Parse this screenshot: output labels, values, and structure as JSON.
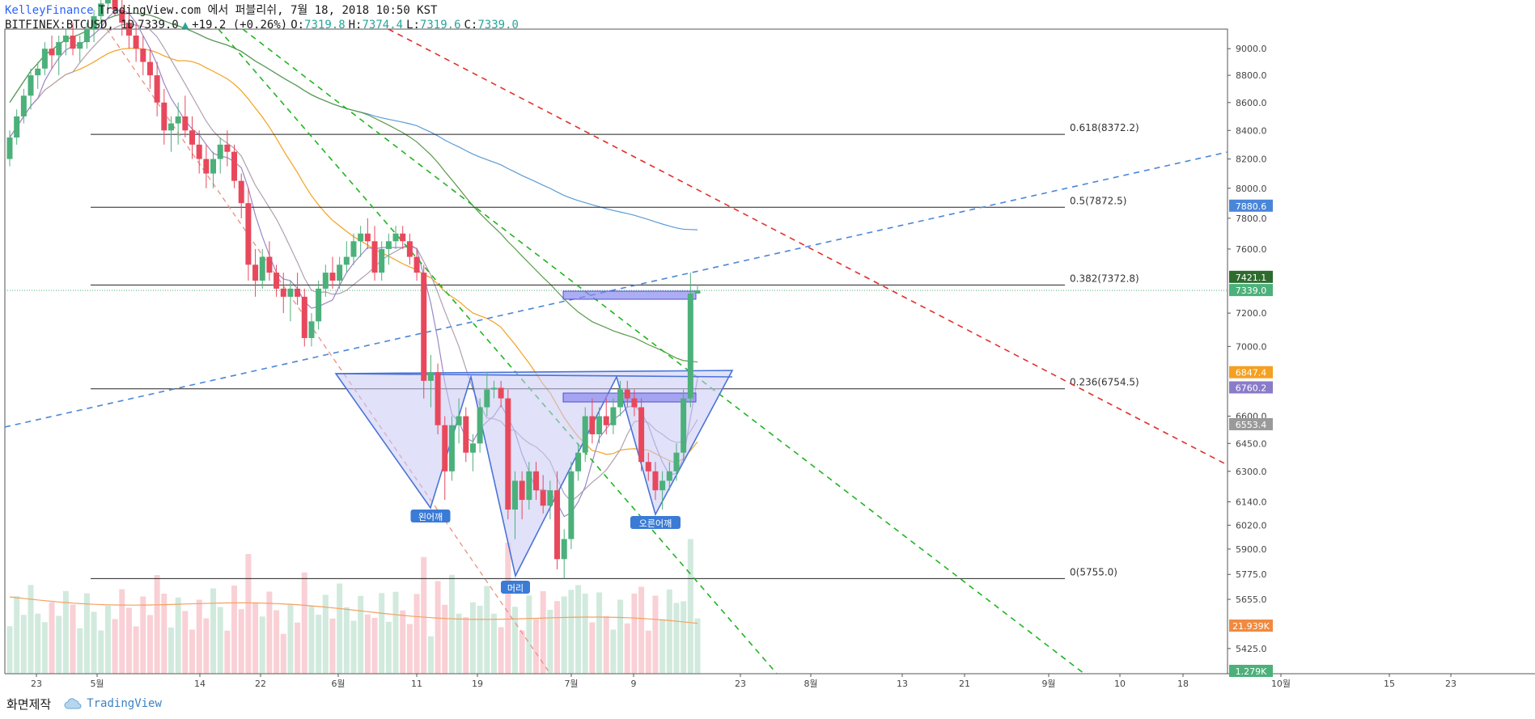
{
  "header": {
    "publisher": "KelleyFinance",
    "source_text": "TradingView.com 에서 퍼블리쉬, 7월 18, 2018 10:50 KST",
    "symbol": "BITFINEX:BTCUSD, 1D",
    "last": "7339.0",
    "arrow": "▲",
    "change": "+19.2 (+0.26%)",
    "open_label": "O:",
    "open": "7319.8",
    "high_label": "H:",
    "high": "7374.4",
    "low_label": "L:",
    "low": "7319.6",
    "close_label": "C:",
    "close": "7339.0"
  },
  "footer": {
    "made_with": "화면제작",
    "brand": "TradingView"
  },
  "colors": {
    "up": "#4cb07a",
    "down": "#e8485c",
    "ma_blue": "#5b9bd5",
    "ma_green": "#5a9a4a",
    "ma_orange": "#f4a020",
    "ma_purple": "#9a88c8",
    "ma_gray": "#b0a0b0",
    "trend_green": "#22b422",
    "trend_red": "#e0302a",
    "trend_blue": "#4a86d8",
    "pattern_fill": "#c8c8f4",
    "pattern_line": "#4a74d8"
  },
  "chart_data": {
    "type": "candlestick",
    "y_axis": {
      "ticks": [
        "9000.0",
        "8800.0",
        "8600.0",
        "8400.0",
        "8200.0",
        "8000.0",
        "7800.0",
        "7600.0",
        "7200.0",
        "7000.0",
        "6600.0",
        "6450.0",
        "6300.0",
        "6140.0",
        "6020.0",
        "5900.0",
        "5775.0",
        "5655.0",
        "5425.0"
      ],
      "range": [
        5300,
        9100
      ],
      "scale": "log"
    },
    "x_axis": {
      "ticks": [
        "23",
        "5월",
        "14",
        "22",
        "6월",
        "11",
        "19",
        "7월",
        "9",
        "23",
        "8월",
        "13",
        "21",
        "9월",
        "10",
        "18",
        "10월",
        "15",
        "23"
      ]
    },
    "price_labels": [
      {
        "text": "7880.6",
        "value": 7880.6,
        "color": "#4a86d8"
      },
      {
        "text": "7421.1",
        "value": 7421.1,
        "color": "#2e6b2e"
      },
      {
        "text": "7339.0",
        "value": 7339.0,
        "color": "#4cb07a"
      },
      {
        "text": "6847.4",
        "value": 6847.4,
        "color": "#f4a020"
      },
      {
        "text": "6760.2",
        "value": 6760.2,
        "color": "#8a7cc8"
      },
      {
        "text": "6553.4",
        "value": 6553.4,
        "color": "#9a9a9a"
      },
      {
        "text": "21.939K",
        "value": null,
        "color": "#f08a40"
      },
      {
        "text": "1.279K",
        "value": null,
        "color": "#4cb07a"
      }
    ],
    "fibonacci": [
      {
        "label": "0.618(8372.2)",
        "value": 8372.2
      },
      {
        "label": "0.5(7872.5)",
        "value": 7872.5
      },
      {
        "label": "0.382(7372.8)",
        "value": 7372.8
      },
      {
        "label": "0.236(6754.5)",
        "value": 6754.5
      },
      {
        "label": "0(5755.0)",
        "value": 5755.0
      }
    ],
    "pattern_labels": [
      {
        "text": "왼어깨",
        "value": 6110
      },
      {
        "text": "머리",
        "value": 5755
      },
      {
        "text": "오른어깨",
        "value": 6080
      }
    ],
    "candles": [
      {
        "o": 8200,
        "h": 8400,
        "l": 8150,
        "c": 8350
      },
      {
        "o": 8350,
        "h": 8550,
        "l": 8300,
        "c": 8500
      },
      {
        "o": 8500,
        "h": 8700,
        "l": 8450,
        "c": 8650
      },
      {
        "o": 8650,
        "h": 8850,
        "l": 8550,
        "c": 8800
      },
      {
        "o": 8800,
        "h": 8900,
        "l": 8700,
        "c": 8850
      },
      {
        "o": 8850,
        "h": 9050,
        "l": 8800,
        "c": 9000
      },
      {
        "o": 9000,
        "h": 9100,
        "l": 8850,
        "c": 8950
      },
      {
        "o": 8950,
        "h": 9100,
        "l": 8800,
        "c": 9050
      },
      {
        "o": 9050,
        "h": 9150,
        "l": 8950,
        "c": 9100
      },
      {
        "o": 9100,
        "h": 9200,
        "l": 8950,
        "c": 9000
      },
      {
        "o": 9000,
        "h": 9100,
        "l": 8900,
        "c": 9050
      },
      {
        "o": 9050,
        "h": 9200,
        "l": 9000,
        "c": 9150
      },
      {
        "o": 9150,
        "h": 9300,
        "l": 9050,
        "c": 9250
      },
      {
        "o": 9250,
        "h": 9400,
        "l": 9200,
        "c": 9350
      },
      {
        "o": 9350,
        "h": 9450,
        "l": 9300,
        "c": 9400
      },
      {
        "o": 9400,
        "h": 9500,
        "l": 9250,
        "c": 9300
      },
      {
        "o": 9300,
        "h": 9400,
        "l": 9100,
        "c": 9200
      },
      {
        "o": 9200,
        "h": 9300,
        "l": 9000,
        "c": 9100
      },
      {
        "o": 9100,
        "h": 9200,
        "l": 8900,
        "c": 9000
      },
      {
        "o": 9000,
        "h": 9100,
        "l": 8800,
        "c": 8900
      },
      {
        "o": 8900,
        "h": 9000,
        "l": 8700,
        "c": 8800
      },
      {
        "o": 8800,
        "h": 8900,
        "l": 8500,
        "c": 8600
      },
      {
        "o": 8600,
        "h": 8700,
        "l": 8300,
        "c": 8400
      },
      {
        "o": 8400,
        "h": 8500,
        "l": 8250,
        "c": 8450
      },
      {
        "o": 8450,
        "h": 8600,
        "l": 8300,
        "c": 8500
      },
      {
        "o": 8500,
        "h": 8650,
        "l": 8350,
        "c": 8400
      },
      {
        "o": 8400,
        "h": 8500,
        "l": 8200,
        "c": 8300
      },
      {
        "o": 8300,
        "h": 8400,
        "l": 8100,
        "c": 8200
      },
      {
        "o": 8200,
        "h": 8300,
        "l": 8000,
        "c": 8100
      },
      {
        "o": 8100,
        "h": 8250,
        "l": 8000,
        "c": 8200
      },
      {
        "o": 8200,
        "h": 8350,
        "l": 8100,
        "c": 8300
      },
      {
        "o": 8300,
        "h": 8400,
        "l": 8150,
        "c": 8250
      },
      {
        "o": 8250,
        "h": 8300,
        "l": 8000,
        "c": 8050
      },
      {
        "o": 8050,
        "h": 8100,
        "l": 7800,
        "c": 7900
      },
      {
        "o": 7900,
        "h": 8000,
        "l": 7400,
        "c": 7500
      },
      {
        "o": 7500,
        "h": 7600,
        "l": 7300,
        "c": 7400
      },
      {
        "o": 7400,
        "h": 7600,
        "l": 7350,
        "c": 7550
      },
      {
        "o": 7550,
        "h": 7650,
        "l": 7400,
        "c": 7450
      },
      {
        "o": 7450,
        "h": 7500,
        "l": 7300,
        "c": 7350
      },
      {
        "o": 7350,
        "h": 7450,
        "l": 7200,
        "c": 7300
      },
      {
        "o": 7300,
        "h": 7400,
        "l": 7150,
        "c": 7350
      },
      {
        "o": 7350,
        "h": 7450,
        "l": 7250,
        "c": 7300
      },
      {
        "o": 7300,
        "h": 7350,
        "l": 7000,
        "c": 7050
      },
      {
        "o": 7050,
        "h": 7200,
        "l": 7000,
        "c": 7150
      },
      {
        "o": 7150,
        "h": 7400,
        "l": 7100,
        "c": 7350
      },
      {
        "o": 7350,
        "h": 7500,
        "l": 7300,
        "c": 7450
      },
      {
        "o": 7450,
        "h": 7550,
        "l": 7350,
        "c": 7400
      },
      {
        "o": 7400,
        "h": 7550,
        "l": 7350,
        "c": 7500
      },
      {
        "o": 7500,
        "h": 7650,
        "l": 7450,
        "c": 7550
      },
      {
        "o": 7550,
        "h": 7700,
        "l": 7500,
        "c": 7650
      },
      {
        "o": 7650,
        "h": 7750,
        "l": 7550,
        "c": 7700
      },
      {
        "o": 7700,
        "h": 7800,
        "l": 7600,
        "c": 7650
      },
      {
        "o": 7650,
        "h": 7750,
        "l": 7400,
        "c": 7450
      },
      {
        "o": 7450,
        "h": 7650,
        "l": 7400,
        "c": 7600
      },
      {
        "o": 7600,
        "h": 7700,
        "l": 7500,
        "c": 7650
      },
      {
        "o": 7650,
        "h": 7750,
        "l": 7600,
        "c": 7700
      },
      {
        "o": 7700,
        "h": 7750,
        "l": 7600,
        "c": 7650
      },
      {
        "o": 7650,
        "h": 7700,
        "l": 7500,
        "c": 7550
      },
      {
        "o": 7550,
        "h": 7600,
        "l": 7400,
        "c": 7450
      },
      {
        "o": 7450,
        "h": 7500,
        "l": 6700,
        "c": 6800
      },
      {
        "o": 6800,
        "h": 6950,
        "l": 6650,
        "c": 6850
      },
      {
        "o": 6850,
        "h": 6900,
        "l": 6500,
        "c": 6550
      },
      {
        "o": 6550,
        "h": 6600,
        "l": 6150,
        "c": 6300
      },
      {
        "o": 6300,
        "h": 6600,
        "l": 6250,
        "c": 6550
      },
      {
        "o": 6550,
        "h": 6700,
        "l": 6450,
        "c": 6600
      },
      {
        "o": 6600,
        "h": 6650,
        "l": 6350,
        "c": 6400
      },
      {
        "o": 6400,
        "h": 6500,
        "l": 6300,
        "c": 6450
      },
      {
        "o": 6450,
        "h": 6700,
        "l": 6400,
        "c": 6650
      },
      {
        "o": 6650,
        "h": 6850,
        "l": 6600,
        "c": 6750
      },
      {
        "o": 6750,
        "h": 6800,
        "l": 6700,
        "c": 6760
      },
      {
        "o": 6760,
        "h": 6800,
        "l": 6650,
        "c": 6700
      },
      {
        "o": 6700,
        "h": 6750,
        "l": 6050,
        "c": 6100
      },
      {
        "o": 6100,
        "h": 6300,
        "l": 5950,
        "c": 6250
      },
      {
        "o": 6250,
        "h": 6300,
        "l": 6050,
        "c": 6150
      },
      {
        "o": 6150,
        "h": 6350,
        "l": 6100,
        "c": 6300
      },
      {
        "o": 6300,
        "h": 6350,
        "l": 6150,
        "c": 6200
      },
      {
        "o": 6200,
        "h": 6280,
        "l": 6080,
        "c": 6120
      },
      {
        "o": 6120,
        "h": 6250,
        "l": 6050,
        "c": 6200
      },
      {
        "o": 6200,
        "h": 6300,
        "l": 5800,
        "c": 5850
      },
      {
        "o": 5850,
        "h": 6000,
        "l": 5755,
        "c": 5950
      },
      {
        "o": 5950,
        "h": 6350,
        "l": 5900,
        "c": 6300
      },
      {
        "o": 6300,
        "h": 6450,
        "l": 6250,
        "c": 6400
      },
      {
        "o": 6400,
        "h": 6650,
        "l": 6350,
        "c": 6600
      },
      {
        "o": 6600,
        "h": 6700,
        "l": 6450,
        "c": 6500
      },
      {
        "o": 6500,
        "h": 6650,
        "l": 6450,
        "c": 6600
      },
      {
        "o": 6600,
        "h": 6700,
        "l": 6500,
        "c": 6550
      },
      {
        "o": 6550,
        "h": 6700,
        "l": 6500,
        "c": 6650
      },
      {
        "o": 6650,
        "h": 6800,
        "l": 6600,
        "c": 6750
      },
      {
        "o": 6750,
        "h": 6800,
        "l": 6650,
        "c": 6700
      },
      {
        "o": 6700,
        "h": 6750,
        "l": 6600,
        "c": 6650
      },
      {
        "o": 6650,
        "h": 6700,
        "l": 6300,
        "c": 6350
      },
      {
        "o": 6350,
        "h": 6400,
        "l": 6250,
        "c": 6300
      },
      {
        "o": 6300,
        "h": 6350,
        "l": 6150,
        "c": 6200
      },
      {
        "o": 6200,
        "h": 6300,
        "l": 6100,
        "c": 6250
      },
      {
        "o": 6250,
        "h": 6350,
        "l": 6200,
        "c": 6300
      },
      {
        "o": 6300,
        "h": 6450,
        "l": 6250,
        "c": 6400
      },
      {
        "o": 6400,
        "h": 6750,
        "l": 6350,
        "c": 6700
      },
      {
        "o": 6700,
        "h": 7450,
        "l": 6650,
        "c": 7320
      },
      {
        "o": 7319.8,
        "h": 7374.4,
        "l": 7319.6,
        "c": 7339.0
      }
    ],
    "volume_max_label": "21.939K"
  }
}
